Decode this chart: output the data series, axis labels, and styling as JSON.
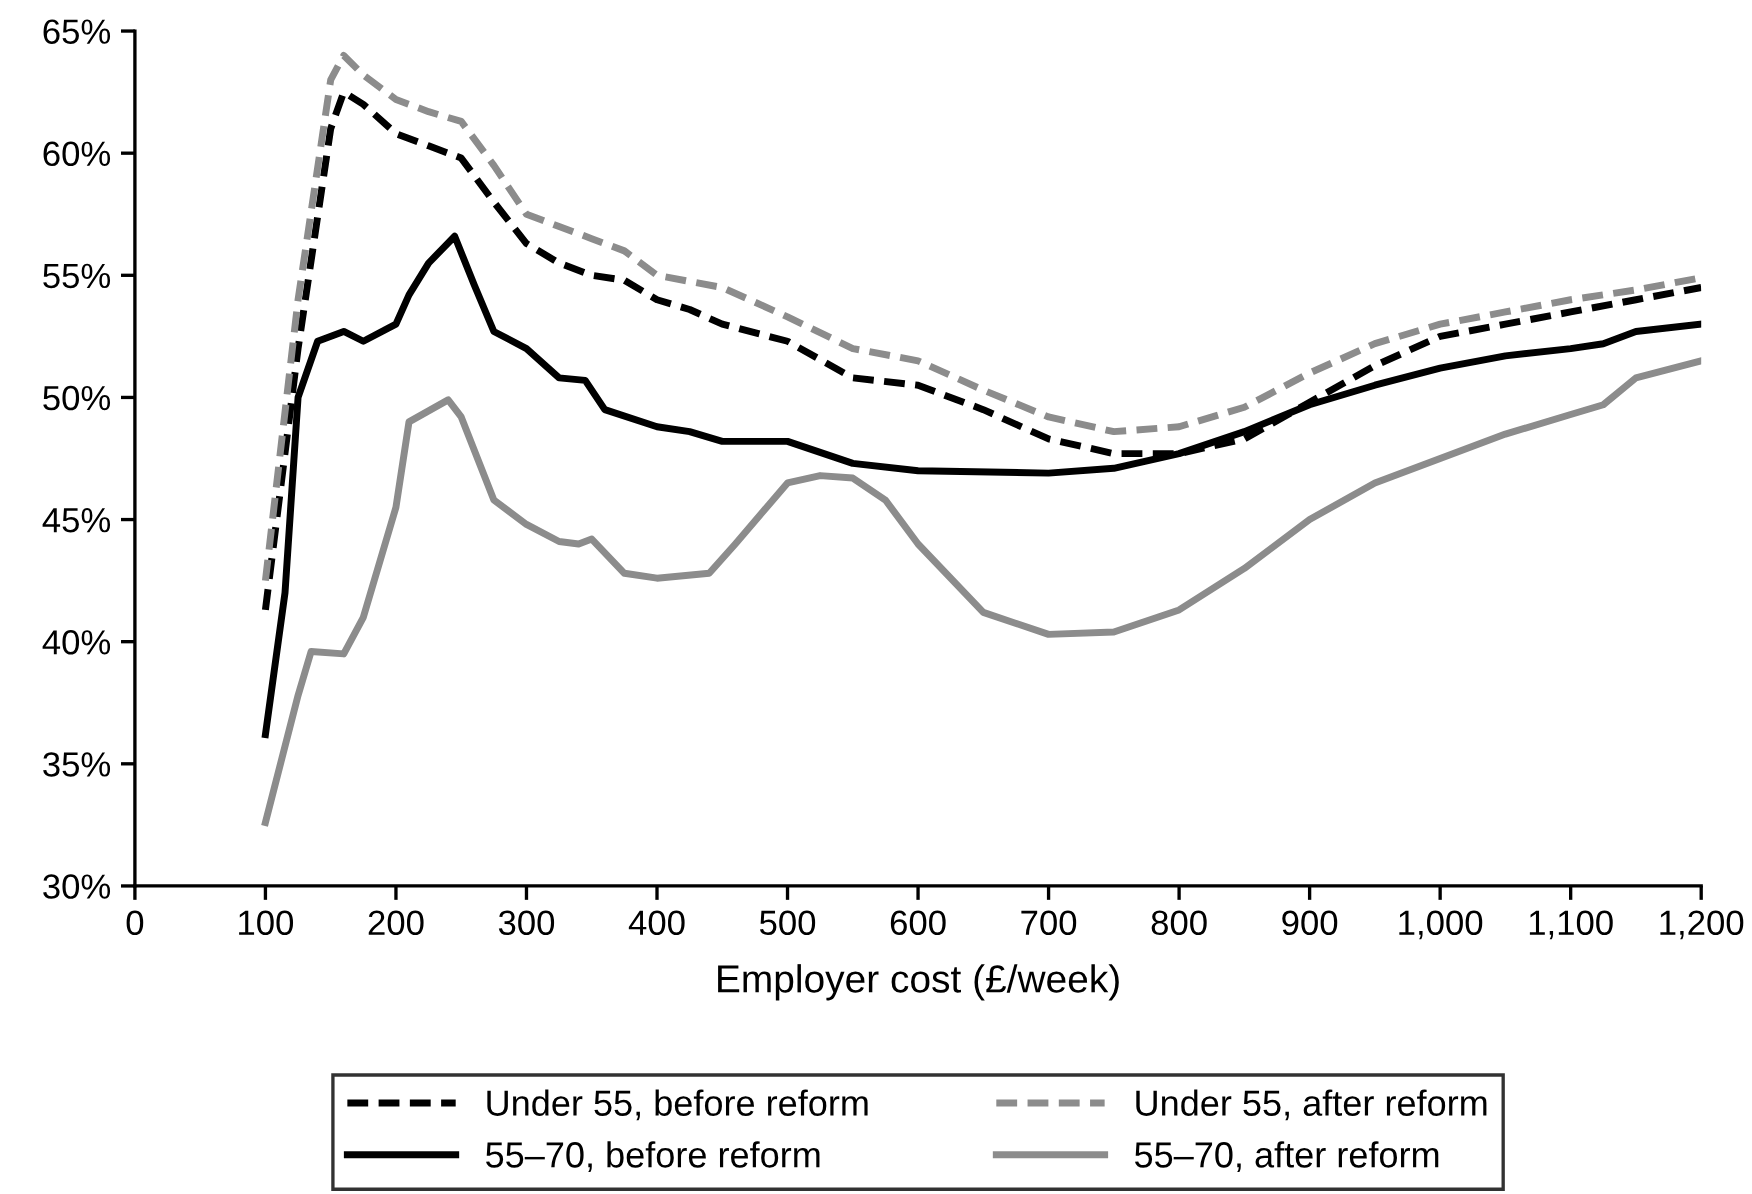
{
  "chart_data": {
    "type": "line",
    "xlabel": "Employer cost (£/week)",
    "xlim": [
      0,
      1200
    ],
    "ylim": [
      30,
      65
    ],
    "xticks": [
      0,
      100,
      200,
      300,
      400,
      500,
      600,
      700,
      800,
      900,
      {
        "value": 1000,
        "label": "1,000"
      },
      {
        "value": 1100,
        "label": "1,100"
      },
      {
        "value": 1200,
        "label": "1,200"
      }
    ],
    "yticks": [
      {
        "value": 30,
        "label": "30%"
      },
      {
        "value": 35,
        "label": "35%"
      },
      {
        "value": 40,
        "label": "40%"
      },
      {
        "value": 45,
        "label": "45%"
      },
      {
        "value": 50,
        "label": "50%"
      },
      {
        "value": 55,
        "label": "55%"
      },
      {
        "value": 60,
        "label": "60%"
      },
      {
        "value": 65,
        "label": "65%"
      }
    ],
    "grid": false,
    "legend": "bottom",
    "marker": "none",
    "series": [
      {
        "name": "Under 55, before reform",
        "color": "#000000",
        "line_style": "dashed",
        "x": [
          100,
          125,
          150,
          160,
          175,
          200,
          225,
          250,
          275,
          300,
          325,
          350,
          375,
          400,
          425,
          450,
          500,
          550,
          600,
          650,
          700,
          750,
          800,
          850,
          900,
          950,
          1000,
          1050,
          1100,
          1150,
          1200
        ],
        "values": [
          41.3,
          52,
          61,
          62.5,
          62,
          60.8,
          60.3,
          59.8,
          58,
          56.3,
          55.5,
          55,
          54.8,
          54,
          53.6,
          53,
          52.3,
          50.8,
          50.5,
          49.5,
          48.3,
          47.7,
          47.7,
          48.3,
          49.8,
          51.3,
          52.5,
          53,
          53.5,
          54,
          54.5
        ]
      },
      {
        "name": "Under 55, after reform",
        "color": "#8c8c8c",
        "line_style": "dashed",
        "x": [
          100,
          125,
          150,
          160,
          175,
          200,
          225,
          250,
          275,
          300,
          325,
          350,
          375,
          400,
          450,
          500,
          550,
          600,
          650,
          700,
          750,
          800,
          850,
          900,
          950,
          1000,
          1050,
          1100,
          1150,
          1200
        ],
        "values": [
          42.5,
          54,
          63,
          64,
          63.2,
          62.2,
          61.7,
          61.3,
          59.5,
          57.5,
          57,
          56.5,
          56,
          55,
          54.5,
          53.3,
          52,
          51.5,
          50.3,
          49.2,
          48.6,
          48.8,
          49.6,
          51,
          52.2,
          53,
          53.5,
          54,
          54.4,
          54.9
        ]
      },
      {
        "name": "55–70, before reform",
        "color": "#000000",
        "line_style": "solid",
        "x": [
          100,
          115,
          125,
          140,
          160,
          175,
          200,
          210,
          225,
          245,
          260,
          275,
          300,
          325,
          345,
          360,
          400,
          425,
          450,
          500,
          550,
          600,
          700,
          750,
          800,
          850,
          900,
          950,
          1000,
          1050,
          1100,
          1125,
          1150,
          1200
        ],
        "values": [
          36.2,
          42,
          50,
          52.3,
          52.7,
          52.3,
          53,
          54.2,
          55.5,
          56.6,
          54.6,
          52.7,
          52,
          50.8,
          50.7,
          49.5,
          48.8,
          48.6,
          48.2,
          48.2,
          47.3,
          47,
          46.9,
          47.1,
          47.7,
          48.6,
          49.7,
          50.5,
          51.2,
          51.7,
          52,
          52.2,
          52.7,
          53
        ]
      },
      {
        "name": "55–70, after reform",
        "color": "#8c8c8c",
        "line_style": "solid",
        "x": [
          100,
          125,
          135,
          160,
          175,
          200,
          210,
          240,
          250,
          275,
          300,
          325,
          340,
          350,
          375,
          400,
          440,
          460,
          500,
          525,
          550,
          575,
          600,
          650,
          700,
          750,
          800,
          850,
          900,
          950,
          1000,
          1050,
          1100,
          1125,
          1150,
          1200
        ],
        "values": [
          32.6,
          37.8,
          39.6,
          39.5,
          41,
          45.5,
          49,
          49.9,
          49.2,
          45.8,
          44.8,
          44.1,
          44,
          44.2,
          42.8,
          42.6,
          42.8,
          44,
          46.5,
          46.8,
          46.7,
          45.8,
          44,
          41.2,
          40.3,
          40.4,
          41.3,
          43,
          45,
          46.5,
          47.5,
          48.5,
          49.3,
          49.7,
          50.8,
          51.5
        ]
      }
    ]
  }
}
